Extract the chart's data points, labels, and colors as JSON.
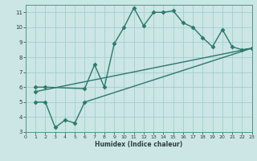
{
  "xlabel": "Humidex (Indice chaleur)",
  "bg_color": "#cce5e5",
  "grid_color": "#99cccc",
  "line_color": "#2a7a6a",
  "xlim": [
    0,
    23
  ],
  "ylim": [
    3,
    11.5
  ],
  "xticks": [
    0,
    1,
    2,
    3,
    4,
    5,
    6,
    7,
    8,
    9,
    10,
    11,
    12,
    13,
    14,
    15,
    16,
    17,
    18,
    19,
    20,
    21,
    22,
    23
  ],
  "yticks": [
    3,
    4,
    5,
    6,
    7,
    8,
    9,
    10,
    11
  ],
  "line1_x": [
    1,
    2,
    6,
    7,
    8,
    9,
    10,
    11,
    12,
    13,
    14,
    15,
    16,
    17,
    18,
    19,
    20,
    21,
    22,
    23
  ],
  "line1_y": [
    6.0,
    6.0,
    5.9,
    7.5,
    6.0,
    8.9,
    10.0,
    11.3,
    10.1,
    11.0,
    11.0,
    11.1,
    10.3,
    10.0,
    9.3,
    8.7,
    9.85,
    8.7,
    8.5,
    8.6
  ],
  "line2_x": [
    1,
    23
  ],
  "line2_y": [
    5.7,
    8.6
  ],
  "line3_x": [
    1,
    2,
    3,
    4,
    5,
    6,
    23
  ],
  "line3_y": [
    5.0,
    5.0,
    3.3,
    3.8,
    3.6,
    5.0,
    8.6
  ]
}
